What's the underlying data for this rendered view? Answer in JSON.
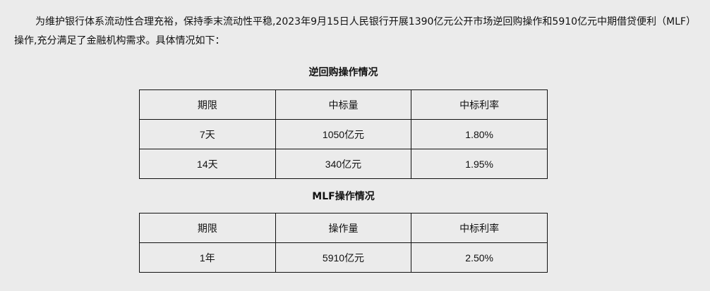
{
  "intro": "为维护银行体系流动性合理充裕，保持季末流动性平稳,2023年9月15日人民银行开展1390亿元公开市场逆回购操作和5910亿元中期借贷便利（MLF）操作,充分满足了金融机构需求。具体情况如下：",
  "reverse_repo": {
    "title": "逆回购操作情况",
    "headers": [
      "期限",
      "中标量",
      "中标利率"
    ],
    "rows": [
      [
        "7天",
        "1050亿元",
        "1.80%"
      ],
      [
        "14天",
        "340亿元",
        "1.95%"
      ]
    ]
  },
  "mlf": {
    "title": "MLF操作情况",
    "headers": [
      "期限",
      "操作量",
      "中标利率"
    ],
    "rows": [
      [
        "1年",
        "5910亿元",
        "2.50%"
      ]
    ]
  }
}
